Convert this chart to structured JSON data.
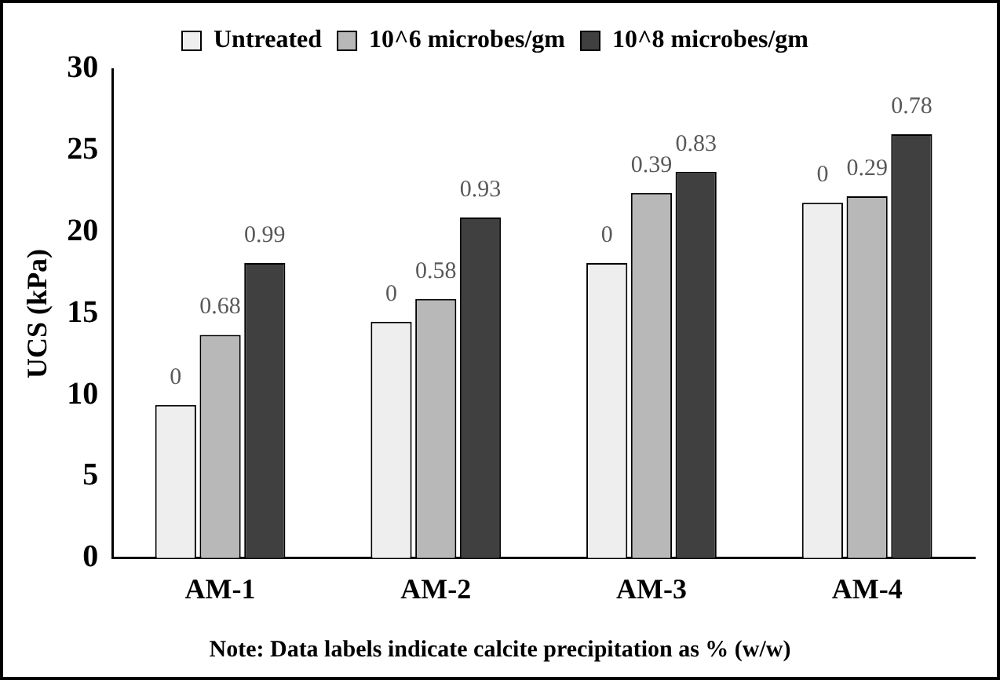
{
  "chart_data": {
    "type": "bar",
    "ylabel": "UCS (kPa)",
    "categories": [
      "AM-1",
      "AM-2",
      "AM-3",
      "AM-4"
    ],
    "series": [
      {
        "name": "Untreated",
        "color": "#eeeeee",
        "values": [
          9.4,
          14.5,
          18.1,
          21.8
        ]
      },
      {
        "name": "10^6 microbes/gm",
        "color": "#b8b8b8",
        "values": [
          13.7,
          15.9,
          22.4,
          22.2
        ]
      },
      {
        "name": "10^8 microbes/gm",
        "color": "#404040",
        "values": [
          18.1,
          20.9,
          23.7,
          26.0
        ]
      }
    ],
    "ylim": [
      0,
      30
    ],
    "yticks": [
      0,
      5,
      10,
      15,
      20,
      25,
      30
    ],
    "grid": false,
    "legend": "top",
    "annotations": [
      "0",
      "0",
      "0",
      "0",
      "0.68",
      "0.58",
      "0.39",
      "0.29",
      "0.99",
      "0.93",
      "0.83",
      "0.78",
      "Note: Data labels indicate calcite precipitation as % (w/w)"
    ]
  }
}
